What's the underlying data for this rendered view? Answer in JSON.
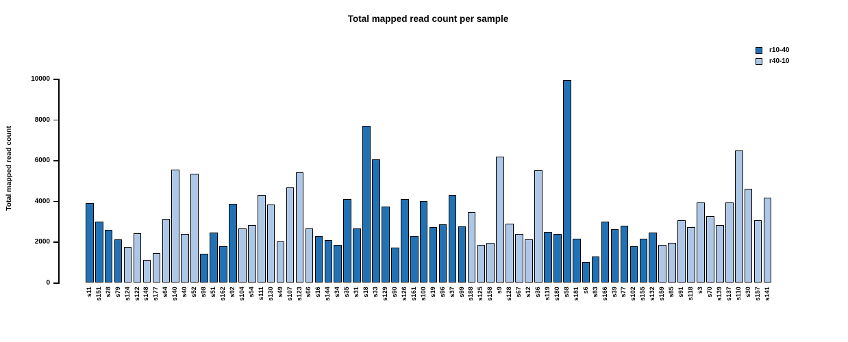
{
  "title": "Total mapped read count per sample",
  "y_axis": {
    "label": "Total mapped read count",
    "ticks": [
      0,
      2000,
      4000,
      6000,
      8000,
      10000
    ]
  },
  "legend": [
    {
      "label": "r10-40",
      "color": "#2171b5"
    },
    {
      "label": "r40-10",
      "color": "#aec7e6"
    }
  ],
  "chart_data": {
    "type": "bar",
    "title": "Total mapped read count per sample",
    "xlabel": "",
    "ylabel": "Total mapped read count",
    "ylim": [
      0,
      10000
    ],
    "yticks": [
      0,
      2000,
      4000,
      6000,
      8000,
      10000
    ],
    "grid": false,
    "legend_position": "topright",
    "series_colors": {
      "r10-40": "#2171b5",
      "r40-10": "#aec7e6"
    },
    "bars": [
      {
        "sample": "s11",
        "value": 3890,
        "group": "r10-40"
      },
      {
        "sample": "s151",
        "value": 2990,
        "group": "r10-40"
      },
      {
        "sample": "s28",
        "value": 2600,
        "group": "r10-40"
      },
      {
        "sample": "s79",
        "value": 2100,
        "group": "r10-40"
      },
      {
        "sample": "s124",
        "value": 1740,
        "group": "r40-10"
      },
      {
        "sample": "s122",
        "value": 2400,
        "group": "r40-10"
      },
      {
        "sample": "s148",
        "value": 1120,
        "group": "r40-10"
      },
      {
        "sample": "s177",
        "value": 1450,
        "group": "r40-10"
      },
      {
        "sample": "s64",
        "value": 3130,
        "group": "r40-10"
      },
      {
        "sample": "s140",
        "value": 5550,
        "group": "r40-10"
      },
      {
        "sample": "s40",
        "value": 2370,
        "group": "r40-10"
      },
      {
        "sample": "s52",
        "value": 5330,
        "group": "r40-10"
      },
      {
        "sample": "s98",
        "value": 1400,
        "group": "r10-40"
      },
      {
        "sample": "s51",
        "value": 2440,
        "group": "r10-40"
      },
      {
        "sample": "s162",
        "value": 1790,
        "group": "r10-40"
      },
      {
        "sample": "s92",
        "value": 3870,
        "group": "r10-40"
      },
      {
        "sample": "s104",
        "value": 2650,
        "group": "r40-10"
      },
      {
        "sample": "s54",
        "value": 2820,
        "group": "r40-10"
      },
      {
        "sample": "s111",
        "value": 4280,
        "group": "r40-10"
      },
      {
        "sample": "s130",
        "value": 3820,
        "group": "r40-10"
      },
      {
        "sample": "s49",
        "value": 2010,
        "group": "r40-10"
      },
      {
        "sample": "s107",
        "value": 4660,
        "group": "r40-10"
      },
      {
        "sample": "s123",
        "value": 5390,
        "group": "r40-10"
      },
      {
        "sample": "s66",
        "value": 2650,
        "group": "r40-10"
      },
      {
        "sample": "s16",
        "value": 2270,
        "group": "r10-40"
      },
      {
        "sample": "s144",
        "value": 2090,
        "group": "r10-40"
      },
      {
        "sample": "s34",
        "value": 1840,
        "group": "r10-40"
      },
      {
        "sample": "s35",
        "value": 4080,
        "group": "r10-40"
      },
      {
        "sample": "s31",
        "value": 2660,
        "group": "r10-40"
      },
      {
        "sample": "s18",
        "value": 7670,
        "group": "r10-40"
      },
      {
        "sample": "s33",
        "value": 6050,
        "group": "r10-40"
      },
      {
        "sample": "s129",
        "value": 3720,
        "group": "r10-40"
      },
      {
        "sample": "s90",
        "value": 1710,
        "group": "r10-40"
      },
      {
        "sample": "s126",
        "value": 4100,
        "group": "r10-40"
      },
      {
        "sample": "s161",
        "value": 2270,
        "group": "r10-40"
      },
      {
        "sample": "s100",
        "value": 3990,
        "group": "r10-40"
      },
      {
        "sample": "s19",
        "value": 2730,
        "group": "r10-40"
      },
      {
        "sample": "s96",
        "value": 2850,
        "group": "r10-40"
      },
      {
        "sample": "s37",
        "value": 4280,
        "group": "r10-40"
      },
      {
        "sample": "s99",
        "value": 2740,
        "group": "r10-40"
      },
      {
        "sample": "s188",
        "value": 3440,
        "group": "r40-10"
      },
      {
        "sample": "s125",
        "value": 1840,
        "group": "r40-10"
      },
      {
        "sample": "s158",
        "value": 1930,
        "group": "r40-10"
      },
      {
        "sample": "s9",
        "value": 6170,
        "group": "r40-10"
      },
      {
        "sample": "s128",
        "value": 2870,
        "group": "r40-10"
      },
      {
        "sample": "s67",
        "value": 2380,
        "group": "r40-10"
      },
      {
        "sample": "s12",
        "value": 2120,
        "group": "r40-10"
      },
      {
        "sample": "s36",
        "value": 5510,
        "group": "r40-10"
      },
      {
        "sample": "s119",
        "value": 2490,
        "group": "r10-40"
      },
      {
        "sample": "s180",
        "value": 2370,
        "group": "r10-40"
      },
      {
        "sample": "s58",
        "value": 9940,
        "group": "r10-40"
      },
      {
        "sample": "s181",
        "value": 2140,
        "group": "r10-40"
      },
      {
        "sample": "s6",
        "value": 1010,
        "group": "r10-40"
      },
      {
        "sample": "s83",
        "value": 1260,
        "group": "r10-40"
      },
      {
        "sample": "s166",
        "value": 2980,
        "group": "r10-40"
      },
      {
        "sample": "s39",
        "value": 2630,
        "group": "r10-40"
      },
      {
        "sample": "s77",
        "value": 2780,
        "group": "r10-40"
      },
      {
        "sample": "s102",
        "value": 1770,
        "group": "r10-40"
      },
      {
        "sample": "s155",
        "value": 2160,
        "group": "r10-40"
      },
      {
        "sample": "s132",
        "value": 2460,
        "group": "r10-40"
      },
      {
        "sample": "s159",
        "value": 1840,
        "group": "r40-10"
      },
      {
        "sample": "s85",
        "value": 1930,
        "group": "r40-10"
      },
      {
        "sample": "s91",
        "value": 3050,
        "group": "r40-10"
      },
      {
        "sample": "s118",
        "value": 2720,
        "group": "r40-10"
      },
      {
        "sample": "s3",
        "value": 3940,
        "group": "r40-10"
      },
      {
        "sample": "s70",
        "value": 3250,
        "group": "r40-10"
      },
      {
        "sample": "s139",
        "value": 2820,
        "group": "r40-10"
      },
      {
        "sample": "s137",
        "value": 3910,
        "group": "r40-10"
      },
      {
        "sample": "s110",
        "value": 6490,
        "group": "r40-10"
      },
      {
        "sample": "s30",
        "value": 4590,
        "group": "r40-10"
      },
      {
        "sample": "s157",
        "value": 3040,
        "group": "r40-10"
      },
      {
        "sample": "s141",
        "value": 4160,
        "group": "r40-10"
      }
    ]
  }
}
